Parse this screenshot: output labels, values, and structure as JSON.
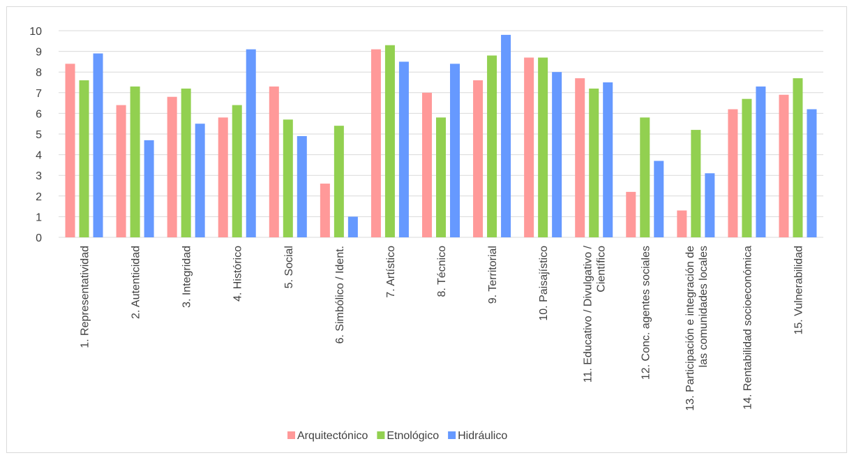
{
  "chart_data": {
    "type": "bar",
    "title": "",
    "xlabel": "",
    "ylabel": "",
    "ylim": [
      0,
      10
    ],
    "yticks": [
      0,
      1,
      2,
      3,
      4,
      5,
      6,
      7,
      8,
      9,
      10
    ],
    "grid": "horizontal",
    "legend_position": "bottom",
    "categories": [
      [
        "1. Representatividad"
      ],
      [
        "2. Autenticidad"
      ],
      [
        "3. Integridad"
      ],
      [
        "4. Histórico"
      ],
      [
        "5. Social"
      ],
      [
        "6. Simbólico / Ident."
      ],
      [
        "7. Artístico"
      ],
      [
        "8. Técnico"
      ],
      [
        "9. Territorial"
      ],
      [
        "10. Paisajístico"
      ],
      [
        "11. Educativo / Divulgativo /",
        "Científico"
      ],
      [
        "12. Conc. agentes sociales"
      ],
      [
        "13. Participación e integración de",
        "las comunidades locales"
      ],
      [
        "14. Rentabilidad socioeconómica"
      ],
      [
        "15. Vulnerabilidad"
      ]
    ],
    "series": [
      {
        "name": "Arquitectónico",
        "color": "#ff9999",
        "values": [
          8.4,
          6.4,
          6.8,
          5.8,
          7.3,
          2.6,
          9.1,
          7.0,
          7.6,
          8.7,
          7.7,
          2.2,
          1.3,
          6.2,
          6.9
        ]
      },
      {
        "name": "Etnológico",
        "color": "#92d050",
        "values": [
          7.6,
          7.3,
          7.2,
          6.4,
          5.7,
          5.4,
          9.3,
          5.8,
          8.8,
          8.7,
          7.2,
          5.8,
          5.2,
          6.7,
          7.7
        ]
      },
      {
        "name": "Hidráulico",
        "color": "#6699ff",
        "values": [
          8.9,
          4.7,
          5.5,
          9.1,
          4.9,
          1.0,
          8.5,
          8.4,
          9.8,
          8.0,
          7.5,
          3.7,
          3.1,
          7.3,
          6.2
        ]
      }
    ]
  }
}
